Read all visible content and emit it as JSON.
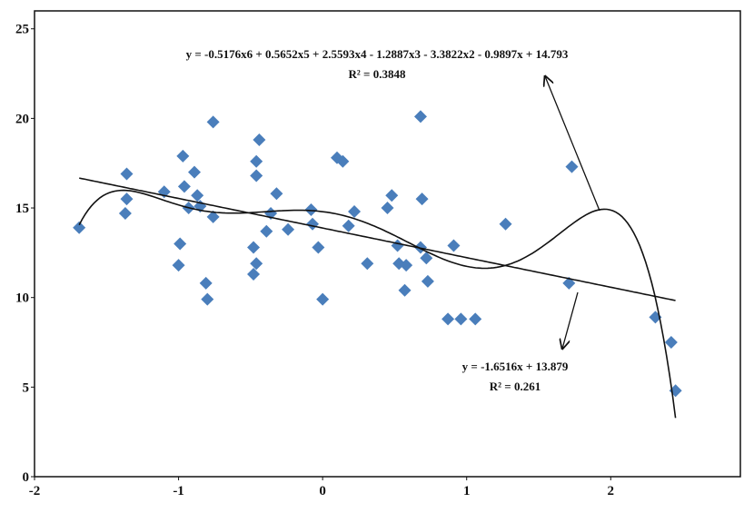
{
  "chart_data": {
    "type": "scatter",
    "x": [
      -1.69,
      -1.36,
      -1.36,
      -1.37,
      -1.1,
      -0.97,
      -0.96,
      -0.93,
      -0.89,
      -0.87,
      -0.85,
      -0.99,
      -1.0,
      -0.76,
      -0.76,
      -0.81,
      -0.8,
      -0.44,
      -0.46,
      -0.46,
      -0.48,
      -0.46,
      -0.48,
      -0.39,
      -0.36,
      -0.32,
      -0.24,
      -0.08,
      -0.07,
      -0.03,
      0.0,
      0.1,
      0.14,
      0.18,
      0.22,
      0.31,
      0.45,
      0.48,
      0.52,
      0.53,
      0.58,
      0.57,
      0.68,
      0.69,
      0.68,
      0.72,
      0.73,
      0.87,
      0.91,
      0.96,
      1.06,
      1.27,
      1.73,
      1.71,
      2.31,
      2.42,
      2.45
    ],
    "values": [
      13.9,
      16.9,
      15.5,
      14.7,
      15.9,
      17.9,
      16.2,
      15.0,
      17.0,
      15.7,
      15.1,
      13.0,
      11.8,
      19.8,
      14.5,
      10.8,
      9.9,
      18.8,
      17.6,
      16.8,
      12.8,
      11.9,
      11.3,
      13.7,
      14.7,
      15.8,
      13.8,
      14.9,
      14.1,
      12.8,
      9.9,
      17.8,
      17.6,
      14.0,
      14.8,
      11.9,
      15.0,
      15.7,
      12.9,
      11.9,
      11.8,
      10.4,
      20.1,
      15.5,
      12.8,
      12.2,
      10.9,
      8.8,
      12.9,
      8.8,
      8.8,
      14.1,
      17.3,
      10.8,
      8.9,
      7.5,
      4.8
    ],
    "color": "#4a7ebb",
    "trendlines": [
      {
        "equation": "y = -0.5176x6 + 0.5652x5 + 2.5593x4 - 1.2887x3 - 3.3822x2 - 0.9897x + 14.793",
        "r2": "R² = 0.3848",
        "coefficients": [
          -0.5176,
          0.5652,
          2.5593,
          -1.2887,
          -3.3822,
          -0.9897,
          14.793
        ]
      },
      {
        "equation": "y = -1.6516x + 13.879",
        "r2": "R² = 0.261",
        "coefficients": [
          -1.6516,
          13.879
        ]
      }
    ],
    "xlim": [
      -2,
      2.9
    ],
    "xticks": [
      -2,
      -1,
      0,
      1,
      2
    ],
    "ylim": [
      0,
      26
    ],
    "yticks": [
      0,
      5,
      10,
      15,
      20,
      25
    ]
  }
}
